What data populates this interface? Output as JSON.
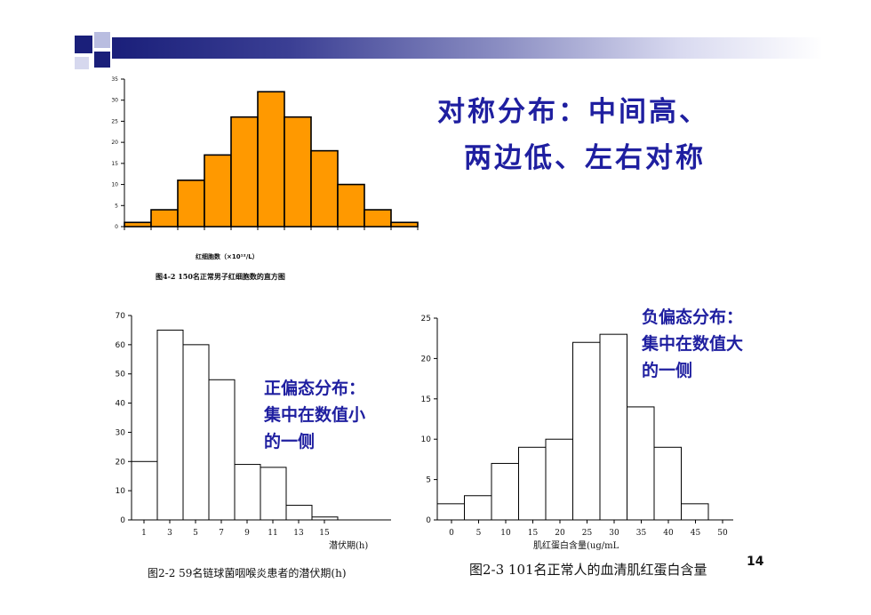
{
  "slide": {
    "headline_line1": "对称分布：中间高、",
    "headline_line2": "两边低、左右对称",
    "note_positive": [
      "正偏态分布：",
      "集中在数值小",
      "的一侧"
    ],
    "note_negative": [
      "负偏态分布：",
      "集中在数值大",
      "的一侧"
    ],
    "page_number": "14",
    "colors": {
      "accent_text": "#1f1fa0",
      "orange_bar": "#ff9900",
      "deco_bar": "#1a1f7a"
    }
  },
  "chart_data": [
    {
      "type": "bar",
      "subtype": "histogram",
      "caption": "图4-2  150名正常男子红细胞数的直方图",
      "xlabel": "红细胞数（×10¹²/L）",
      "ylabel": "",
      "ylim": [
        0,
        35
      ],
      "yticks": [
        0,
        5,
        10,
        15,
        20,
        25,
        30,
        35
      ],
      "values": [
        1,
        4,
        11,
        17,
        26,
        32,
        26,
        18,
        10,
        4,
        1
      ],
      "color": "#ff9900",
      "bar_outline": "#000000"
    },
    {
      "type": "bar",
      "subtype": "histogram",
      "caption": "图2-2  59名链球菌咽喉炎患者的潜伏期(h)",
      "xlabel": "潜伏期(h)",
      "ylabel": "",
      "ylim": [
        0,
        70
      ],
      "yticks": [
        0,
        10,
        20,
        30,
        40,
        50,
        60,
        70
      ],
      "xticks": [
        "1",
        "3",
        "5",
        "7",
        "9",
        "11",
        "13",
        "15"
      ],
      "values": [
        20,
        65,
        60,
        48,
        19,
        18,
        5,
        1
      ],
      "color": "#ffffff",
      "bar_outline": "#000000"
    },
    {
      "type": "bar",
      "subtype": "histogram",
      "caption": "图2-3  101名正常人的血清肌红蛋白含量",
      "xlabel": "肌红蛋白含量(ug/mL",
      "ylabel": "",
      "ylim": [
        0,
        25
      ],
      "yticks": [
        0,
        5,
        10,
        15,
        20,
        25
      ],
      "xticks": [
        "0",
        "5",
        "10",
        "15",
        "20",
        "25",
        "30",
        "35",
        "40",
        "45",
        "50"
      ],
      "values": [
        2,
        3,
        7,
        9,
        10,
        22,
        23,
        14,
        9,
        2
      ],
      "color": "#ffffff",
      "bar_outline": "#000000"
    }
  ]
}
